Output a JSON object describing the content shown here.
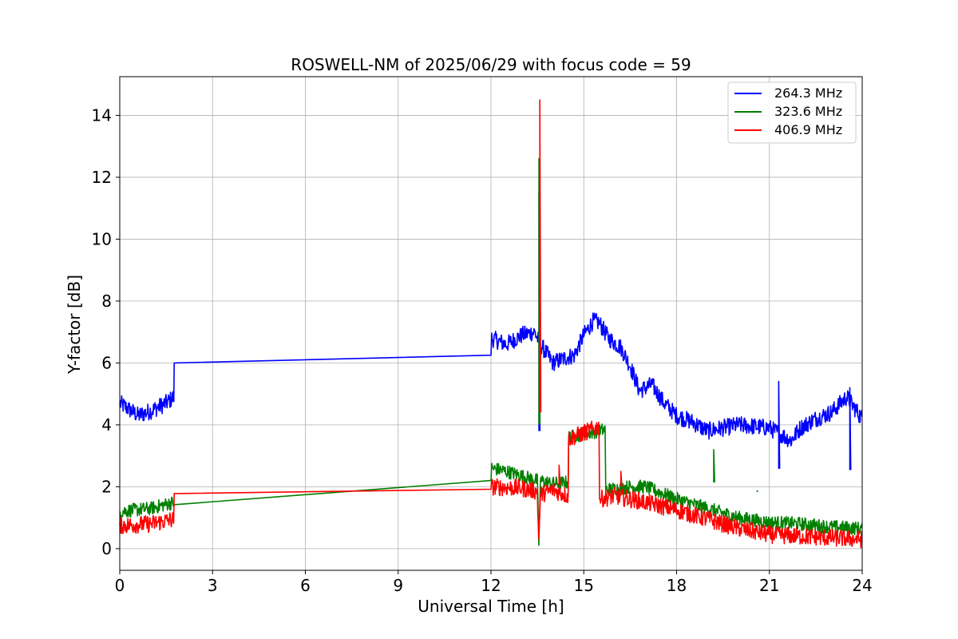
{
  "chart_data": {
    "type": "line",
    "title": "ROSWELL-NM of 2025/06/29 with focus code = 59",
    "xlabel": "Universal Time [h]",
    "ylabel": "Y-factor [dB]",
    "xlim": [
      0,
      24
    ],
    "ylim": [
      -0.7,
      15.25
    ],
    "xticks": [
      0,
      3,
      6,
      9,
      12,
      15,
      18,
      21,
      24
    ],
    "yticks": [
      0,
      2,
      4,
      6,
      8,
      10,
      12,
      14
    ],
    "grid": true,
    "legend_position": "top-right",
    "series": [
      {
        "name": "264.3 MHz",
        "color": "#0000ff",
        "noise": 0.28,
        "points": [
          [
            0,
            4.7
          ],
          [
            0.3,
            4.5
          ],
          [
            0.6,
            4.3
          ],
          [
            1.0,
            4.45
          ],
          [
            1.5,
            4.7
          ],
          [
            1.75,
            4.9
          ],
          [
            1.76,
            6.0
          ],
          [
            12.0,
            6.25
          ],
          [
            12.01,
            6.8
          ],
          [
            12.5,
            6.6
          ],
          [
            13.0,
            6.9
          ],
          [
            13.4,
            7.0
          ],
          [
            13.6,
            6.6
          ],
          [
            14.0,
            6.0
          ],
          [
            14.5,
            6.2
          ],
          [
            14.7,
            6.25
          ],
          [
            15.0,
            6.9
          ],
          [
            15.3,
            7.35
          ],
          [
            15.5,
            7.3
          ],
          [
            15.8,
            6.8
          ],
          [
            16.2,
            6.5
          ],
          [
            16.5,
            5.9
          ],
          [
            16.8,
            5.1
          ],
          [
            17.2,
            5.3
          ],
          [
            17.6,
            4.7
          ],
          [
            18.0,
            4.3
          ],
          [
            18.5,
            4.1
          ],
          [
            19.0,
            3.8
          ],
          [
            20.0,
            4.0
          ],
          [
            21.0,
            3.9
          ],
          [
            21.7,
            3.5
          ],
          [
            22.0,
            3.9
          ],
          [
            22.5,
            4.2
          ],
          [
            23.0,
            4.4
          ],
          [
            23.5,
            4.9
          ],
          [
            24.0,
            4.2
          ]
        ],
        "spikes": [
          [
            13.55,
            11.5
          ],
          [
            21.3,
            5.4
          ],
          [
            23.6,
            5.2
          ]
        ]
      },
      {
        "name": "323.6 MHz",
        "color": "#008000",
        "noise": 0.22,
        "points": [
          [
            0,
            1.2
          ],
          [
            1.0,
            1.3
          ],
          [
            1.75,
            1.5
          ],
          [
            1.76,
            2.1
          ],
          [
            12.0,
            2.2
          ],
          [
            12.01,
            2.6
          ],
          [
            12.5,
            2.5
          ],
          [
            13.0,
            2.35
          ],
          [
            13.5,
            2.2
          ],
          [
            13.55,
            0.05
          ],
          [
            13.6,
            2.2
          ],
          [
            14.0,
            2.1
          ],
          [
            14.5,
            2.15
          ],
          [
            14.51,
            3.6
          ],
          [
            15.7,
            3.85
          ],
          [
            15.71,
            1.9
          ],
          [
            16.5,
            2.0
          ],
          [
            17.0,
            2.0
          ],
          [
            18.0,
            1.6
          ],
          [
            19.0,
            1.3
          ],
          [
            20.0,
            1.0
          ],
          [
            21.0,
            0.85
          ],
          [
            22.0,
            0.8
          ],
          [
            23.0,
            0.7
          ],
          [
            24.0,
            0.65
          ]
        ],
        "spikes": [
          [
            13.55,
            12.6
          ],
          [
            19.2,
            3.2
          ],
          [
            20.6,
            1.85
          ]
        ]
      },
      {
        "name": "406.9 MHz",
        "color": "#ff0000",
        "noise": 0.28,
        "points": [
          [
            0,
            0.75
          ],
          [
            1.0,
            0.8
          ],
          [
            1.75,
            0.95
          ],
          [
            1.76,
            1.78
          ],
          [
            12.0,
            1.92
          ],
          [
            12.01,
            2.0
          ],
          [
            13.0,
            1.95
          ],
          [
            13.5,
            1.85
          ],
          [
            13.55,
            0.1
          ],
          [
            13.6,
            1.75
          ],
          [
            14.0,
            1.9
          ],
          [
            14.5,
            1.7
          ],
          [
            14.51,
            3.55
          ],
          [
            15.4,
            3.9
          ],
          [
            15.5,
            3.95
          ],
          [
            15.51,
            1.6
          ],
          [
            16.0,
            1.7
          ],
          [
            17.0,
            1.5
          ],
          [
            18.0,
            1.25
          ],
          [
            19.0,
            0.95
          ],
          [
            20.0,
            0.65
          ],
          [
            21.0,
            0.45
          ],
          [
            22.0,
            0.4
          ],
          [
            23.0,
            0.35
          ],
          [
            24.0,
            0.3
          ]
        ],
        "spikes": [
          [
            13.58,
            14.5
          ],
          [
            14.2,
            2.7
          ],
          [
            16.2,
            2.5
          ]
        ]
      }
    ]
  }
}
